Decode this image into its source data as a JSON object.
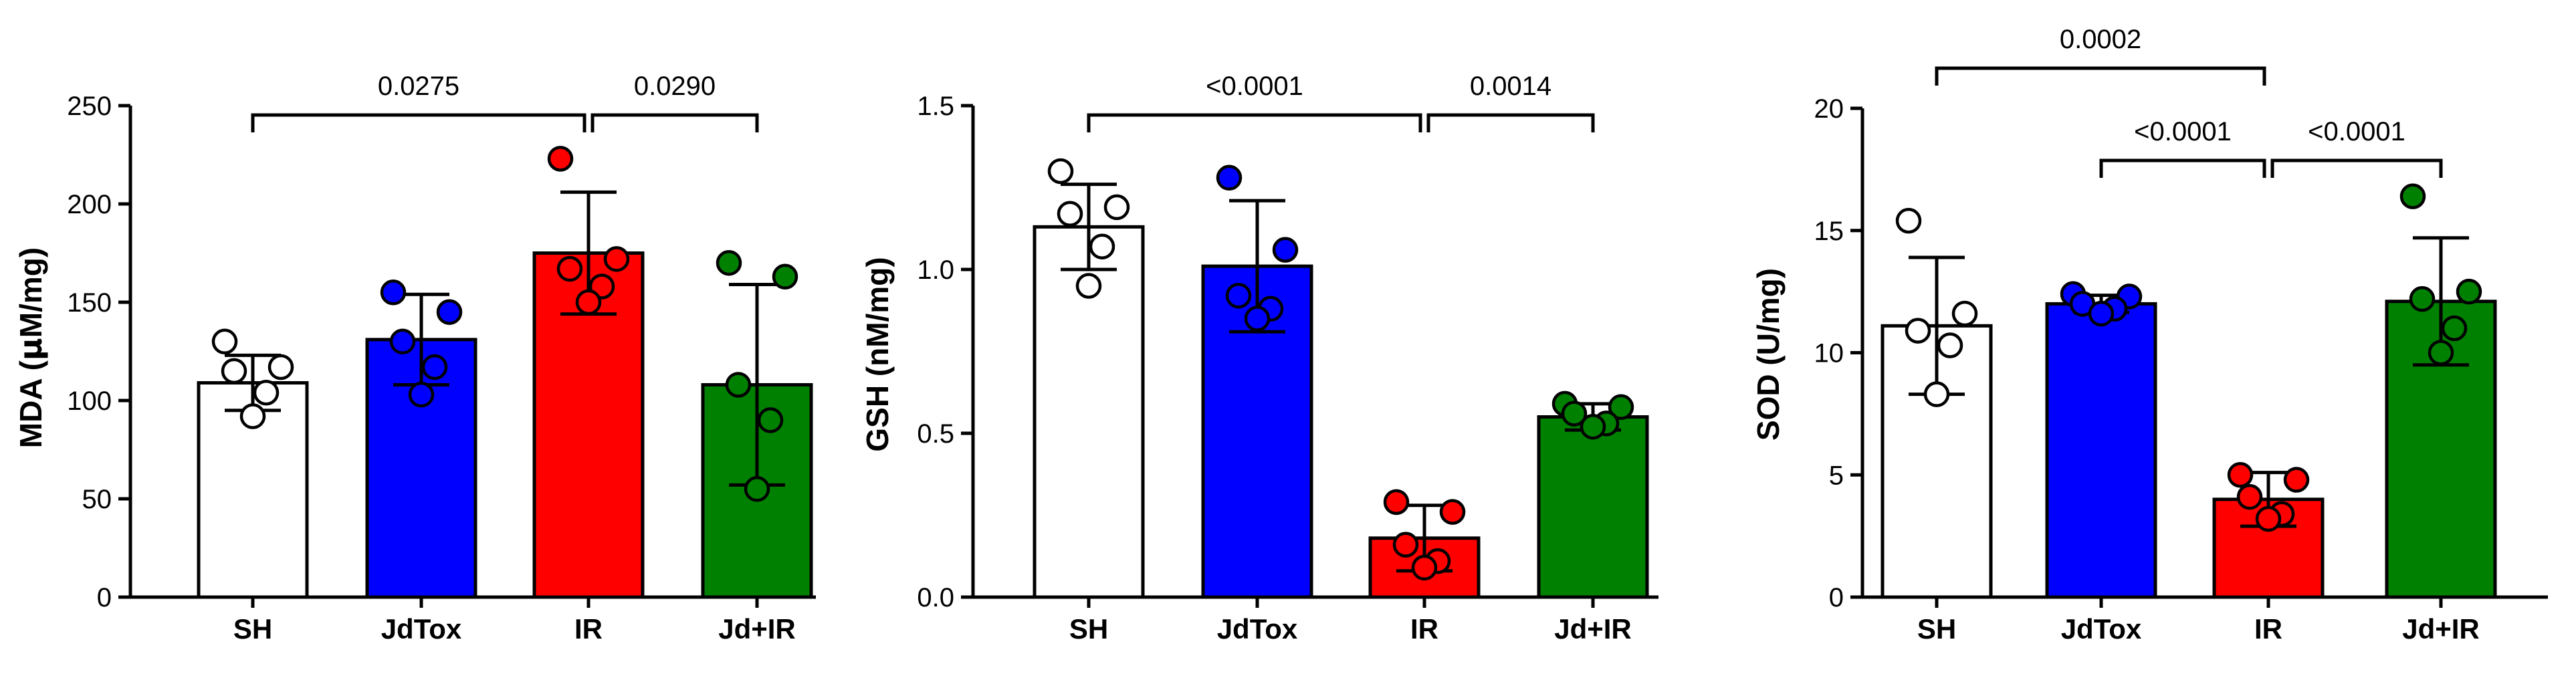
{
  "colors": {
    "SH": "#ffffff",
    "JdTox": "#0000ff",
    "IR": "#ff0000",
    "Jd+IR": "#008000"
  },
  "chart_data": [
    {
      "type": "bar",
      "ylabel_prefix": "MDA (",
      "ylabel_mu": "µ",
      "ylabel_suffix": "M/mg)",
      "ylabel": "MDA (µM/mg)",
      "ylim": [
        0,
        250
      ],
      "yticks": [
        0,
        50,
        100,
        150,
        200,
        250
      ],
      "ytick_labels": [
        "0",
        "50",
        "100",
        "150",
        "200",
        "250"
      ],
      "categories": [
        "SH",
        "JdTox",
        "IR",
        "Jd+IR"
      ],
      "means": [
        109,
        131,
        175,
        108
      ],
      "sd": [
        14,
        23,
        31,
        51
      ],
      "points": [
        [
          130,
          117,
          115,
          104,
          92
        ],
        [
          155,
          145,
          130,
          117,
          103
        ],
        [
          223,
          172,
          167,
          158,
          150
        ],
        [
          170,
          163,
          108,
          90,
          55
        ]
      ],
      "comparisons": [
        {
          "from": 0,
          "to": 2,
          "label": "0.0275",
          "level": 0
        },
        {
          "from": 2,
          "to": 3,
          "label": "0.0290",
          "level": 0
        }
      ]
    },
    {
      "type": "bar",
      "ylabel": "GSH (nM/mg)",
      "ylim": [
        0,
        1.5
      ],
      "yticks": [
        0,
        0.5,
        1.0,
        1.5
      ],
      "ytick_labels": [
        "0.0",
        "0.5",
        "1.0",
        "1.5"
      ],
      "categories": [
        "SH",
        "JdTox",
        "IR",
        "Jd+IR"
      ],
      "means": [
        1.13,
        1.01,
        0.18,
        0.55
      ],
      "sd": [
        0.13,
        0.2,
        0.1,
        0.04
      ],
      "points": [
        [
          1.3,
          1.19,
          1.17,
          1.07,
          0.95
        ],
        [
          1.28,
          1.06,
          0.92,
          0.88,
          0.85
        ],
        [
          0.29,
          0.26,
          0.16,
          0.11,
          0.09
        ],
        [
          0.59,
          0.58,
          0.56,
          0.53,
          0.52
        ]
      ],
      "comparisons": [
        {
          "from": 0,
          "to": 2,
          "label": "<0.0001",
          "level": 0
        },
        {
          "from": 2,
          "to": 3,
          "label": "0.0014",
          "level": 0
        }
      ]
    },
    {
      "type": "bar",
      "ylabel": "SOD (U/mg)",
      "ylim": [
        0,
        20
      ],
      "yticks": [
        0,
        5,
        10,
        15,
        20
      ],
      "ytick_labels": [
        "0",
        "5",
        "10",
        "15",
        "20"
      ],
      "categories": [
        "SH",
        "JdTox",
        "IR",
        "Jd+IR"
      ],
      "means": [
        11.1,
        12.0,
        4.0,
        12.1
      ],
      "sd": [
        2.8,
        0.35,
        1.1,
        2.6
      ],
      "points": [
        [
          15.4,
          11.6,
          10.9,
          10.3,
          8.3
        ],
        [
          12.4,
          12.3,
          12.0,
          11.8,
          11.6
        ],
        [
          5.0,
          4.8,
          4.1,
          3.4,
          3.2
        ],
        [
          16.4,
          12.5,
          12.2,
          11.0,
          10.0
        ]
      ],
      "comparisons": [
        {
          "from": 0,
          "to": 2,
          "label": "0.0002",
          "level": 1
        },
        {
          "from": 1,
          "to": 2,
          "label": "<0.0001",
          "level": 0
        },
        {
          "from": 2,
          "to": 3,
          "label": "<0.0001",
          "level": 0
        }
      ]
    }
  ]
}
